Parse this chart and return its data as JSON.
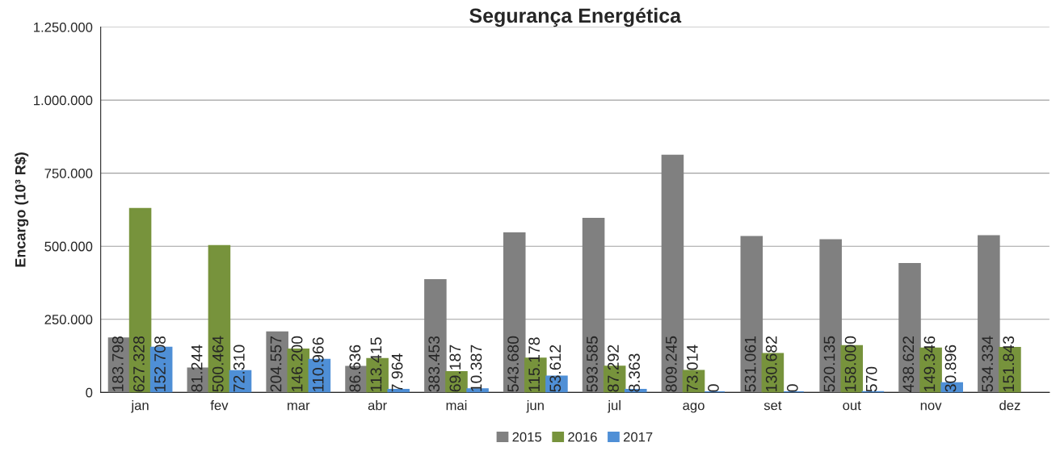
{
  "chart_data": {
    "type": "bar",
    "title": "Segurança Energética",
    "ylabel": "Encargo (10³ R$)",
    "categories": [
      "jan",
      "fev",
      "mar",
      "abr",
      "mai",
      "jun",
      "jul",
      "ago",
      "set",
      "out",
      "nov",
      "dez"
    ],
    "series": [
      {
        "name": "2015",
        "color": "#808080",
        "values": [
          183798,
          81244,
          204557,
          86636,
          383453,
          543680,
          593585,
          809245,
          531061,
          520135,
          438622,
          534334
        ],
        "value_labels": [
          "183.798",
          "81.244",
          "204.557",
          "86.636",
          "383.453",
          "543.680",
          "593.585",
          "809.245",
          "531.061",
          "520.135",
          "438.622",
          "534.334"
        ]
      },
      {
        "name": "2016",
        "color": "#77933c",
        "values": [
          627328,
          500464,
          146200,
          113415,
          69187,
          115178,
          87292,
          73014,
          130682,
          158000,
          149346,
          151843
        ],
        "value_labels": [
          "627.328",
          "500.464",
          "146.200",
          "113.415",
          "69.187",
          "115.178",
          "87.292",
          "73.014",
          "130.682",
          "158.000",
          "149.346",
          "151.843"
        ]
      },
      {
        "name": "2017",
        "color": "#4f8fd6",
        "values": [
          152708,
          72310,
          110966,
          7964,
          10387,
          53612,
          8363,
          0,
          0,
          570,
          30896,
          null
        ],
        "value_labels": [
          "152.708",
          "72.310",
          "110.966",
          "7.964",
          "10.387",
          "53.612",
          "8.363",
          "0",
          "0",
          "570",
          "30.896",
          null
        ]
      }
    ],
    "ylim": [
      0,
      1250000
    ],
    "yticks": [
      {
        "value": 0,
        "label": "0"
      },
      {
        "value": 250000,
        "label": "250.000"
      },
      {
        "value": 500000,
        "label": "500.000"
      },
      {
        "value": 750000,
        "label": "750.000"
      },
      {
        "value": 1000000,
        "label": "1.000.000"
      },
      {
        "value": 1250000,
        "label": "1.250.000"
      }
    ],
    "grid": "y",
    "legend": "bottom"
  }
}
